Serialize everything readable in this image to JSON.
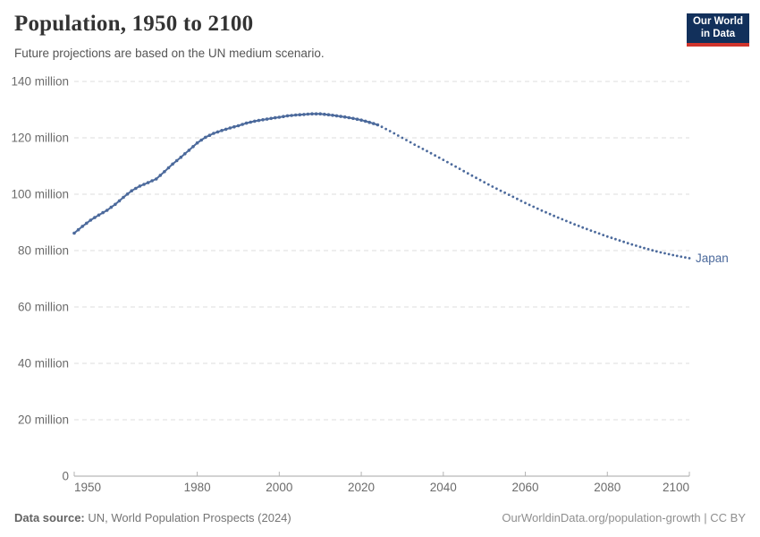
{
  "header": {
    "title": "Population, 1950 to 2100",
    "subtitle": "Future projections are based on the UN medium scenario.",
    "logo_line1": "Our World",
    "logo_line2": "in Data"
  },
  "footer": {
    "datasource_label": "Data source:",
    "datasource_value": "UN, World Population Prospects (2024)",
    "credit": "OurWorldinData.org/population-growth | CC BY"
  },
  "colors": {
    "line": "#4c6a9c",
    "entity_label": "#4c6a9c",
    "grid": "#dedede",
    "axis": "#a5a5a5",
    "tick": "#b3b3b3",
    "tick_label": "#6b6b6b",
    "logo_bg": "#12305b",
    "logo_red": "#d0342c"
  },
  "chart_data": {
    "type": "line",
    "title": "Population, 1950 to 2100",
    "subtitle": "Future projections are based on the UN medium scenario.",
    "entity": "Japan",
    "unit": "million people",
    "grid": true,
    "legend_position": "end-of-line-label",
    "x_range": [
      1950,
      2100
    ],
    "y_range_millions": [
      0,
      140
    ],
    "x_ticks": [
      1950,
      1980,
      2000,
      2020,
      2040,
      2060,
      2080,
      2100
    ],
    "y_ticks": [
      {
        "value": 0,
        "label": "0"
      },
      {
        "value": 20,
        "label": "20 million"
      },
      {
        "value": 40,
        "label": "40 million"
      },
      {
        "value": 60,
        "label": "60 million"
      },
      {
        "value": 80,
        "label": "80 million"
      },
      {
        "value": 100,
        "label": "100 million"
      },
      {
        "value": 120,
        "label": "120 million"
      },
      {
        "value": 140,
        "label": "140 million"
      }
    ],
    "series": [
      {
        "name": "Japan — historical estimates",
        "style": "solid-with-yearly-dots",
        "points_year_millions": [
          [
            1950,
            86.2
          ],
          [
            1952,
            88.6
          ],
          [
            1954,
            90.8
          ],
          [
            1956,
            92.6
          ],
          [
            1958,
            94.3
          ],
          [
            1960,
            96.4
          ],
          [
            1962,
            98.9
          ],
          [
            1964,
            101.2
          ],
          [
            1966,
            102.9
          ],
          [
            1968,
            104.1
          ],
          [
            1970,
            105.4
          ],
          [
            1972,
            108.0
          ],
          [
            1974,
            110.7
          ],
          [
            1976,
            113.1
          ],
          [
            1978,
            115.6
          ],
          [
            1980,
            118.2
          ],
          [
            1982,
            120.2
          ],
          [
            1984,
            121.6
          ],
          [
            1986,
            122.6
          ],
          [
            1988,
            123.5
          ],
          [
            1990,
            124.3
          ],
          [
            1992,
            125.2
          ],
          [
            1994,
            125.9
          ],
          [
            1996,
            126.4
          ],
          [
            1998,
            126.9
          ],
          [
            2000,
            127.3
          ],
          [
            2002,
            127.8
          ],
          [
            2004,
            128.1
          ],
          [
            2006,
            128.3
          ],
          [
            2008,
            128.5
          ],
          [
            2010,
            128.5
          ],
          [
            2012,
            128.2
          ],
          [
            2014,
            127.8
          ],
          [
            2016,
            127.4
          ],
          [
            2018,
            126.9
          ],
          [
            2020,
            126.3
          ],
          [
            2022,
            125.5
          ],
          [
            2024,
            124.6
          ]
        ]
      },
      {
        "name": "Japan — UN medium projection",
        "style": "dotted",
        "points_year_millions": [
          [
            2025,
            123.9
          ],
          [
            2028,
            121.6
          ],
          [
            2030,
            120.0
          ],
          [
            2033,
            117.6
          ],
          [
            2036,
            115.3
          ],
          [
            2040,
            112.2
          ],
          [
            2044,
            109.0
          ],
          [
            2048,
            105.8
          ],
          [
            2052,
            102.7
          ],
          [
            2056,
            99.8
          ],
          [
            2060,
            96.9
          ],
          [
            2064,
            94.2
          ],
          [
            2068,
            91.7
          ],
          [
            2072,
            89.3
          ],
          [
            2076,
            87.1
          ],
          [
            2080,
            85.0
          ],
          [
            2084,
            83.1
          ],
          [
            2088,
            81.3
          ],
          [
            2092,
            79.7
          ],
          [
            2096,
            78.4
          ],
          [
            2100,
            77.3
          ]
        ]
      }
    ]
  }
}
